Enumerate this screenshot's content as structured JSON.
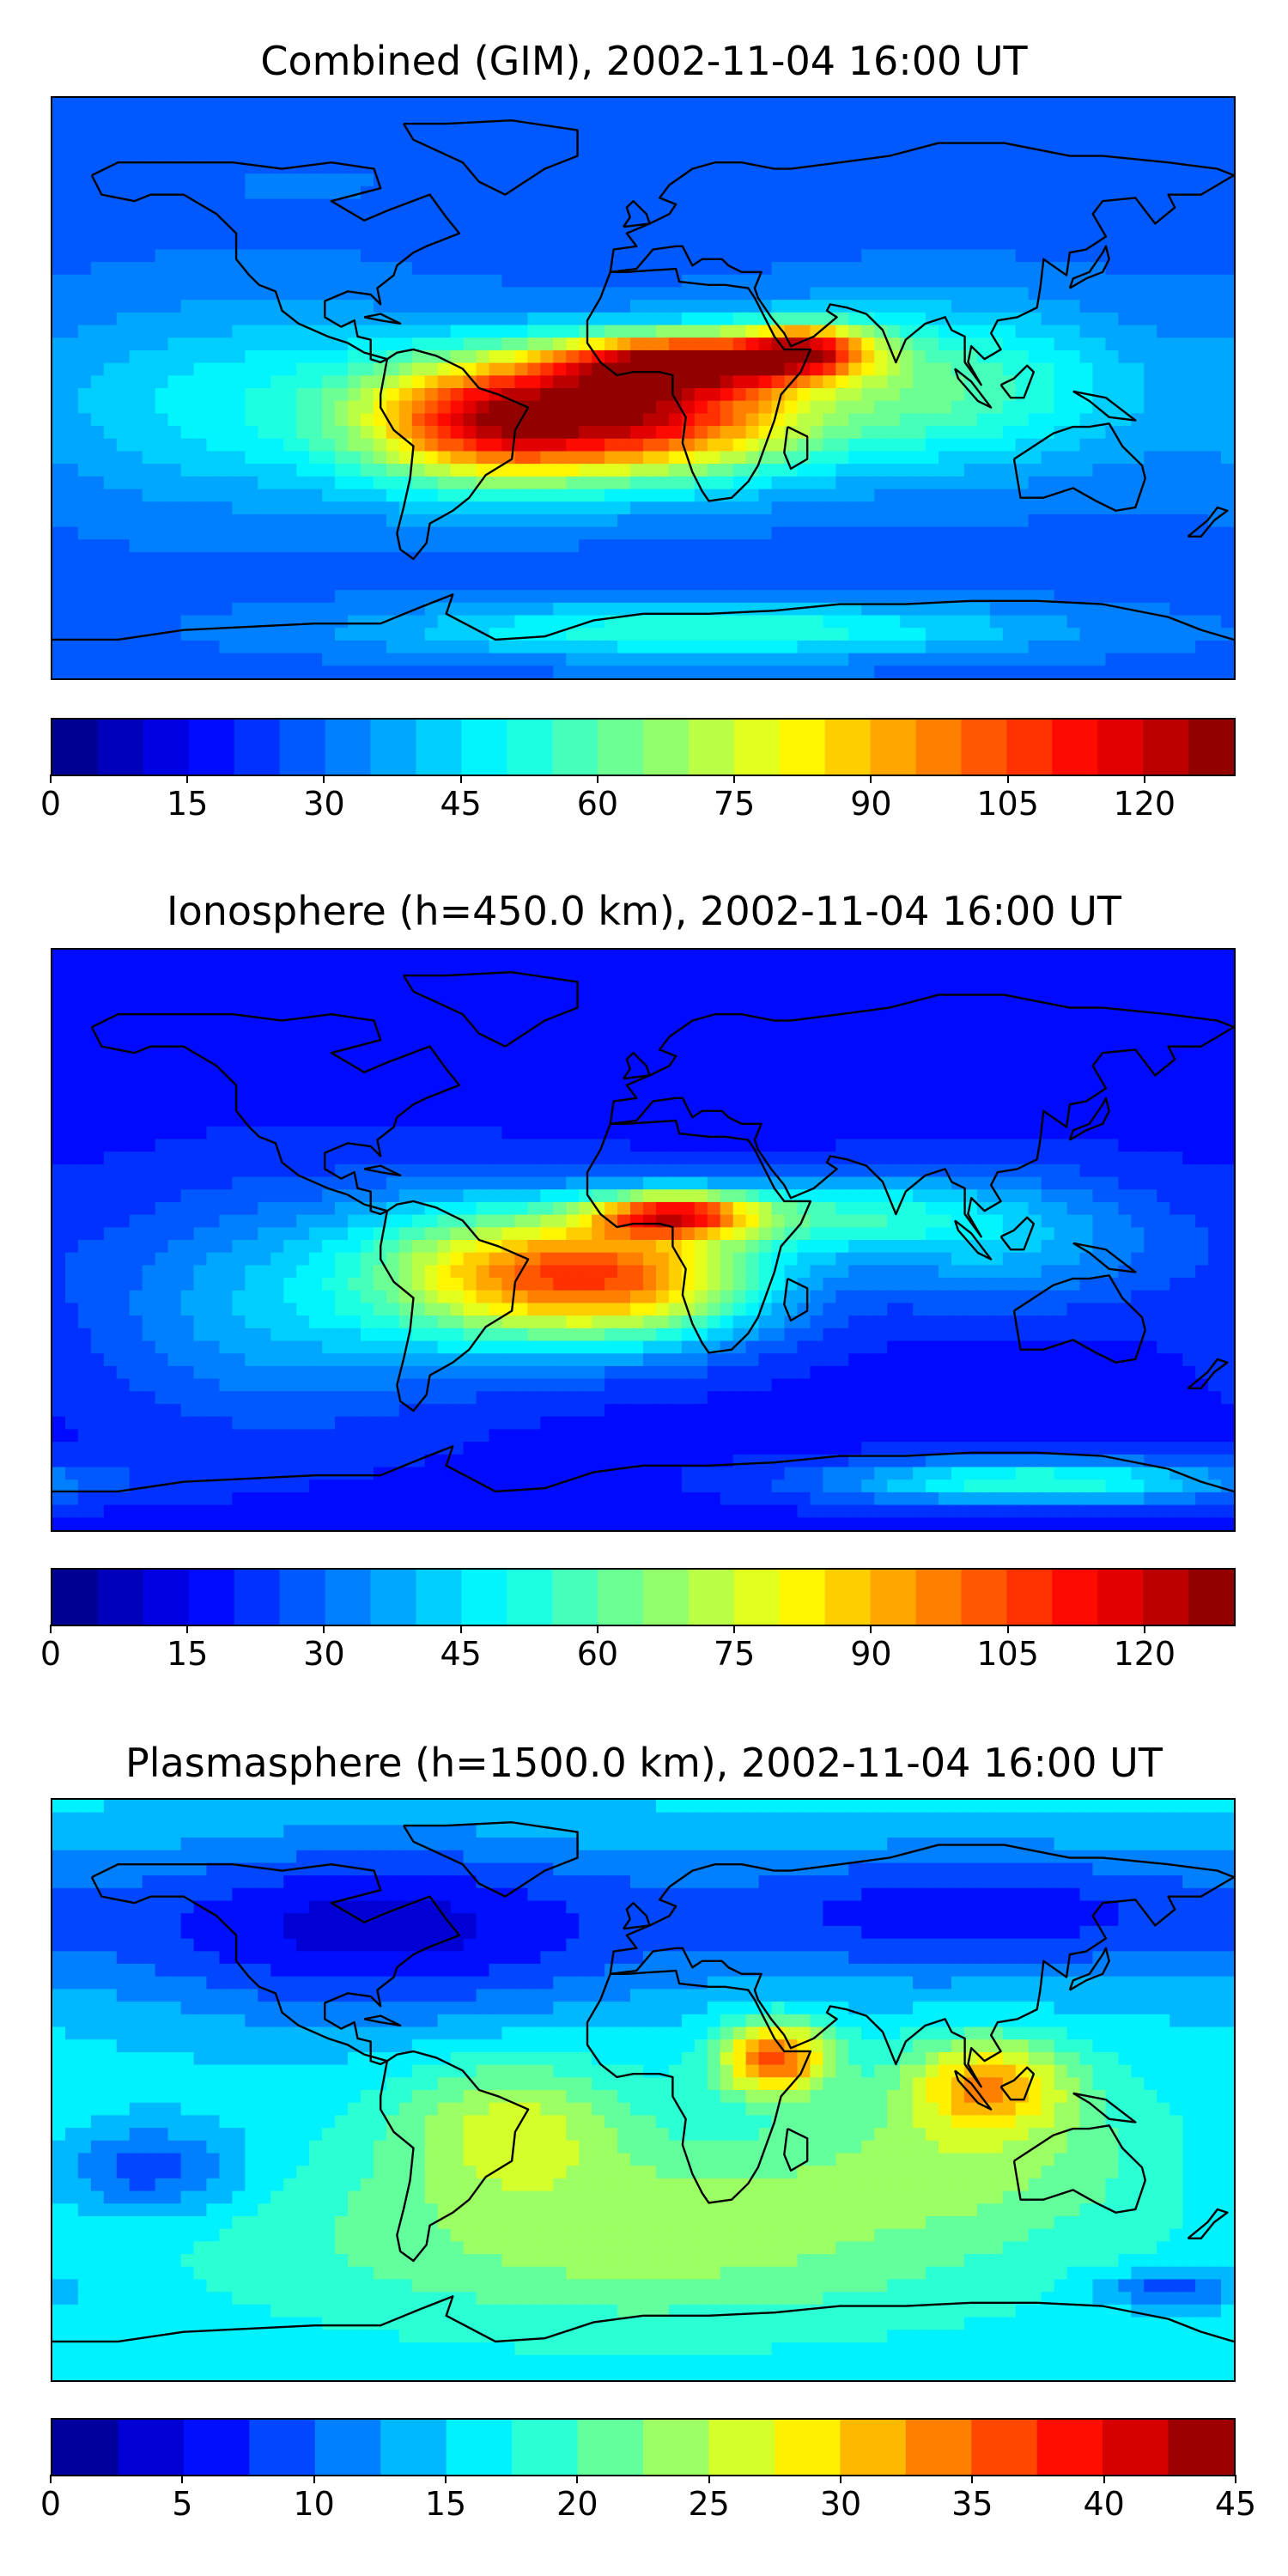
{
  "chart_data": [
    {
      "type": "heatmap",
      "title": "Combined (GIM), 2002-11-04 16:00 UT",
      "colormap": "jet",
      "color_range": [
        0,
        130
      ],
      "colorbar_levels": 26,
      "colorbar_ticks": [
        "0",
        "15",
        "30",
        "45",
        "60",
        "75",
        "90",
        "105",
        "120"
      ],
      "colorbar_tick_values": [
        0,
        15,
        30,
        45,
        60,
        75,
        90,
        105,
        120
      ],
      "coastlines": true,
      "background_value": 28,
      "blobs": [
        {
          "lon": -48,
          "lat": -10,
          "value": 102,
          "lon_spread": 28,
          "lat_spread": 14
        },
        {
          "lon": 5,
          "lat": -8,
          "value": 105,
          "lon_spread": 32,
          "lat_spread": 14
        },
        {
          "lon": 10,
          "lat": 8,
          "value": 95,
          "lon_spread": 25,
          "lat_spread": 6
        },
        {
          "lon": 50,
          "lat": 12,
          "value": 90,
          "lon_spread": 15,
          "lat_spread": 6
        },
        {
          "lon": 90,
          "lat": 0,
          "value": 60,
          "lon_spread": 40,
          "lat_spread": 18
        },
        {
          "lon": -120,
          "lat": -5,
          "value": 48,
          "lon_spread": 45,
          "lat_spread": 22
        },
        {
          "lon": 20,
          "lat": -75,
          "value": 55,
          "lon_spread": 70,
          "lat_spread": 6
        },
        {
          "lon": -100,
          "lat": 65,
          "value": 30,
          "lon_spread": 60,
          "lat_spread": 12
        }
      ]
    },
    {
      "type": "heatmap",
      "title": "Ionosphere  (h=450.0 km), 2002-11-04 16:00 UT",
      "colormap": "jet",
      "color_range": [
        0,
        130
      ],
      "colorbar_levels": 26,
      "colorbar_ticks": [
        "0",
        "15",
        "30",
        "45",
        "60",
        "75",
        "90",
        "105",
        "120"
      ],
      "colorbar_tick_values": [
        0,
        15,
        30,
        45,
        60,
        75,
        90,
        105,
        120
      ],
      "coastlines": true,
      "background_value": 18,
      "blobs": [
        {
          "lon": -45,
          "lat": -10,
          "value": 70,
          "lon_spread": 30,
          "lat_spread": 16
        },
        {
          "lon": 0,
          "lat": -12,
          "value": 82,
          "lon_spread": 30,
          "lat_spread": 14
        },
        {
          "lon": 10,
          "lat": 8,
          "value": 88,
          "lon_spread": 18,
          "lat_spread": 5
        },
        {
          "lon": 60,
          "lat": 8,
          "value": 45,
          "lon_spread": 30,
          "lat_spread": 8
        },
        {
          "lon": 110,
          "lat": 0,
          "value": 40,
          "lon_spread": 35,
          "lat_spread": 15
        },
        {
          "lon": -110,
          "lat": -20,
          "value": 40,
          "lon_spread": 40,
          "lat_spread": 25
        },
        {
          "lon": 120,
          "lat": -75,
          "value": 55,
          "lon_spread": 45,
          "lat_spread": 5
        }
      ]
    },
    {
      "type": "heatmap",
      "title": "Plasmasphere (h=1500.0 km), 2002-11-04 16:00 UT",
      "colormap": "jet",
      "color_range": [
        0,
        45
      ],
      "colorbar_levels": 18,
      "colorbar_ticks": [
        "0",
        "5",
        "10",
        "15",
        "20",
        "25",
        "30",
        "35",
        "40",
        "45"
      ],
      "colorbar_tick_values": [
        0,
        5,
        10,
        15,
        20,
        25,
        30,
        35,
        40,
        45
      ],
      "coastlines": true,
      "background_value": 16,
      "blobs": [
        {
          "lon": 40,
          "lat": 10,
          "value": 36,
          "lon_spread": 12,
          "lat_spread": 8
        },
        {
          "lon": 105,
          "lat": 2,
          "value": 31,
          "lon_spread": 18,
          "lat_spread": 10
        },
        {
          "lon": -40,
          "lat": -10,
          "value": 25,
          "lon_spread": 25,
          "lat_spread": 15
        },
        {
          "lon": 0,
          "lat": -45,
          "value": 24,
          "lon_spread": 80,
          "lat_spread": 20
        },
        {
          "lon": 100,
          "lat": -20,
          "value": 22,
          "lon_spread": 40,
          "lat_spread": 15
        },
        {
          "lon": -150,
          "lat": -25,
          "value": 8,
          "lon_spread": 20,
          "lat_spread": 10
        },
        {
          "lon": -80,
          "lat": 50,
          "value": 4,
          "lon_spread": 60,
          "lat_spread": 20
        },
        {
          "lon": 100,
          "lat": 55,
          "value": 6,
          "lon_spread": 60,
          "lat_spread": 15
        },
        {
          "lon": 160,
          "lat": -62,
          "value": 8,
          "lon_spread": 15,
          "lat_spread": 4
        }
      ]
    }
  ]
}
